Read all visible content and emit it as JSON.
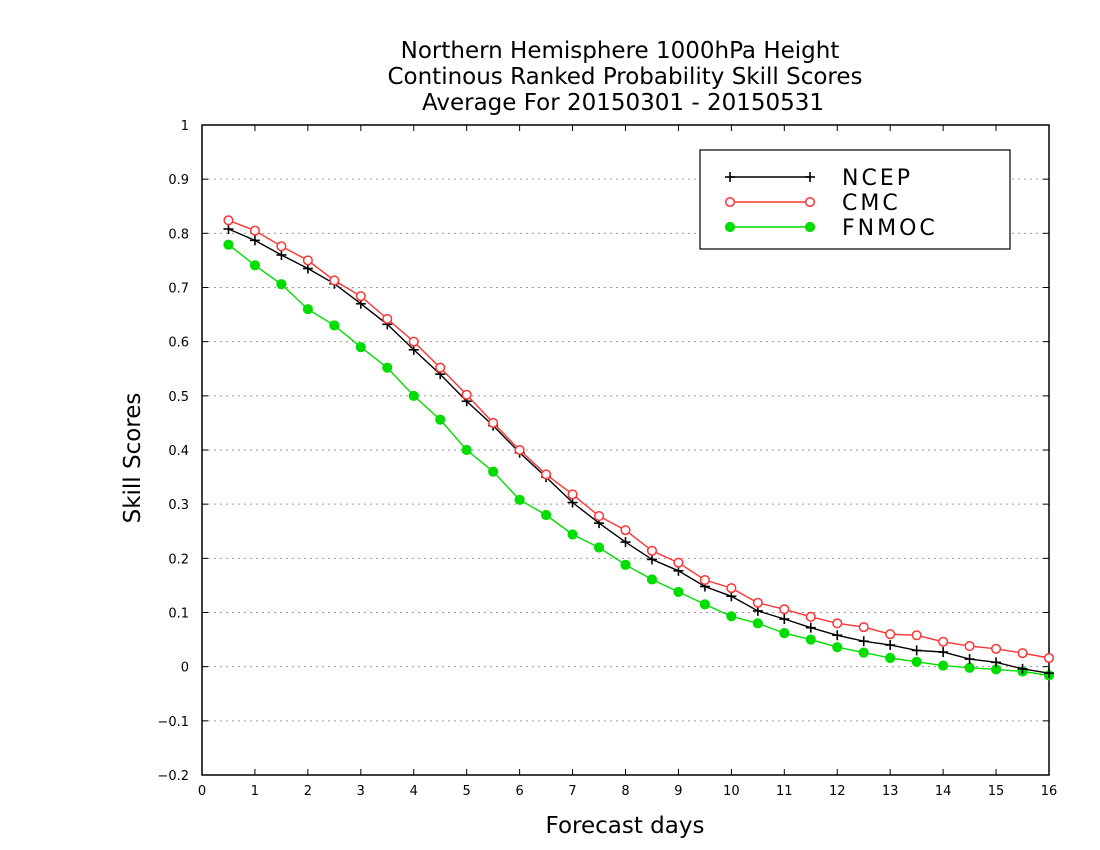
{
  "chart_data": {
    "type": "line",
    "title_lines": [
      "Northern Hemisphere 1000hPa Height",
      "Continous Ranked Probability Skill Scores",
      "Average For 20150301 - 20150531"
    ],
    "xlabel": "Forecast days",
    "ylabel": "Skill Scores",
    "xlim": [
      0,
      16
    ],
    "ylim": [
      -0.2,
      1
    ],
    "x_ticks": [
      0,
      1,
      2,
      3,
      4,
      5,
      6,
      7,
      8,
      9,
      10,
      11,
      12,
      13,
      14,
      15,
      16
    ],
    "y_ticks": [
      -0.2,
      -0.1,
      0,
      0.1,
      0.2,
      0.3,
      0.4,
      0.5,
      0.6,
      0.7,
      0.8,
      0.9,
      1
    ],
    "y_tick_labels": [
      "−0.2",
      "−0.1",
      "0",
      "0.1",
      "0.2",
      "0.3",
      "0.4",
      "0.5",
      "0.6",
      "0.7",
      "0.8",
      "0.9",
      "1"
    ],
    "grid": "horizontal-dotted",
    "legend_position": "top-right",
    "x": [
      0.5,
      1,
      1.5,
      2,
      2.5,
      3,
      3.5,
      4,
      4.5,
      5,
      5.5,
      6,
      6.5,
      7,
      7.5,
      8,
      8.5,
      9,
      9.5,
      10,
      10.5,
      11,
      11.5,
      12,
      12.5,
      13,
      13.5,
      14,
      14.5,
      15,
      15.5,
      16
    ],
    "series": [
      {
        "name": "NCEP",
        "color": "#000000",
        "marker": "plus",
        "values": [
          0.808,
          0.787,
          0.76,
          0.735,
          0.707,
          0.67,
          0.632,
          0.585,
          0.54,
          0.49,
          0.445,
          0.395,
          0.35,
          0.303,
          0.265,
          0.23,
          0.198,
          0.177,
          0.148,
          0.13,
          0.103,
          0.088,
          0.072,
          0.058,
          0.047,
          0.04,
          0.03,
          0.027,
          0.014,
          0.008,
          -0.004,
          -0.012
        ]
      },
      {
        "name": "CMC",
        "color": "#ff3333",
        "marker": "open-circle",
        "values": [
          0.824,
          0.805,
          0.776,
          0.75,
          0.713,
          0.684,
          0.642,
          0.6,
          0.552,
          0.502,
          0.45,
          0.4,
          0.355,
          0.318,
          0.278,
          0.252,
          0.214,
          0.192,
          0.16,
          0.145,
          0.118,
          0.106,
          0.092,
          0.08,
          0.073,
          0.06,
          0.058,
          0.046,
          0.038,
          0.033,
          0.025,
          0.016
        ]
      },
      {
        "name": "FNMOC",
        "color": "#00dd00",
        "marker": "filled-circle",
        "values": [
          0.779,
          0.741,
          0.706,
          0.66,
          0.63,
          0.59,
          0.552,
          0.5,
          0.456,
          0.4,
          0.36,
          0.308,
          0.28,
          0.244,
          0.22,
          0.188,
          0.161,
          0.138,
          0.115,
          0.093,
          0.08,
          0.062,
          0.05,
          0.036,
          0.026,
          0.016,
          0.009,
          0.002,
          -0.002,
          -0.005,
          -0.009,
          -0.016
        ]
      }
    ]
  }
}
